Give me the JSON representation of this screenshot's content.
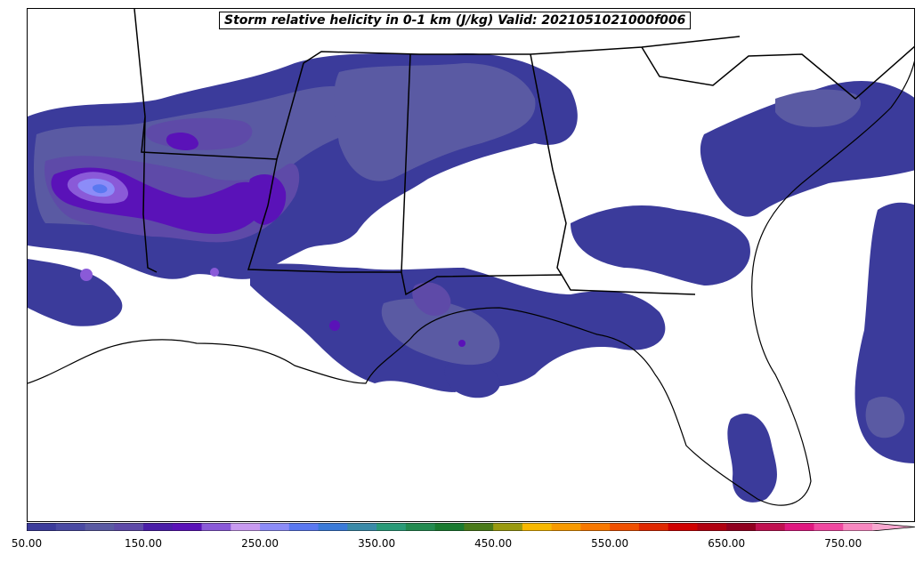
{
  "title": "Storm relative helicity in 0-1 km (J/kg) Valid: 2021051021000f006",
  "colorbar": {
    "min": 50,
    "step": 25,
    "max": 825,
    "tick_labels": [
      "50.00",
      "150.00",
      "250.00",
      "350.00",
      "450.00",
      "550.00",
      "650.00",
      "750.00"
    ],
    "tick_values": [
      50,
      150,
      250,
      350,
      450,
      550,
      650,
      750
    ],
    "colors": [
      "#3b3b9b",
      "#4a4aa3",
      "#5a5aa3",
      "#5e4aa8",
      "#4a1ea8",
      "#5a12b8",
      "#8a5ad8",
      "#c89af0",
      "#8c8cf8",
      "#5a78f0",
      "#3a7ad8",
      "#3a8aa8",
      "#2a9a78",
      "#238a50",
      "#1a7a30",
      "#4a7a1a",
      "#9a9a10",
      "#f8b800",
      "#f89a00",
      "#f87800",
      "#f05000",
      "#e02800",
      "#d00000",
      "#b00010",
      "#900020",
      "#c01050",
      "#e01880",
      "#f048a0",
      "#f888c0",
      "#f8a8d0"
    ],
    "extend": "max"
  },
  "field_palette": {
    "level1": "#3b3b9b",
    "level2": "#5a5aa3",
    "level3": "#5e4aa8",
    "level4": "#5a12b8",
    "level5": "#8a5ad8",
    "level6": "#8c8cf8",
    "level7": "#5a78f0"
  }
}
